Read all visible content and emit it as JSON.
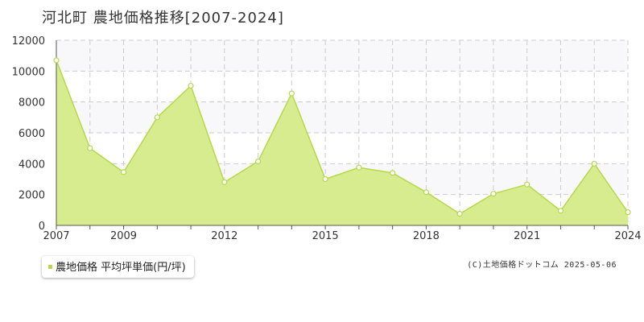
{
  "title": "河北町 農地価格推移[2007-2024]",
  "legend": {
    "label": "農地価格 平均坪単価(円/坪)"
  },
  "credit": "(C)土地価格ドットコム 2025-05-06",
  "colors": {
    "fill": "#d6ec8f",
    "line": "#b5d94a",
    "point_fill": "#ffffff"
  },
  "chart_data": {
    "type": "area",
    "title": "河北町 農地価格推移[2007-2024]",
    "xlabel": "",
    "ylabel": "",
    "x": [
      2007,
      2008,
      2009,
      2010,
      2011,
      2012,
      2013,
      2014,
      2015,
      2016,
      2017,
      2018,
      2019,
      2020,
      2021,
      2022,
      2023,
      2024
    ],
    "series": [
      {
        "name": "農地価格 平均坪単価(円/坪)",
        "values": [
          10700,
          5000,
          3450,
          7000,
          9050,
          2800,
          4150,
          8550,
          3000,
          3750,
          3400,
          2150,
          750,
          2050,
          2650,
          950,
          4000,
          850
        ]
      }
    ],
    "xlim": [
      2007,
      2024
    ],
    "ylim": [
      0,
      12000
    ],
    "y_ticks": [
      0,
      2000,
      4000,
      6000,
      8000,
      10000,
      12000
    ],
    "x_tick_labels": [
      "2007",
      "2009",
      "2012",
      "2015",
      "2018",
      "2021",
      "2024"
    ],
    "grid": true,
    "legend_position": "bottom-left"
  }
}
